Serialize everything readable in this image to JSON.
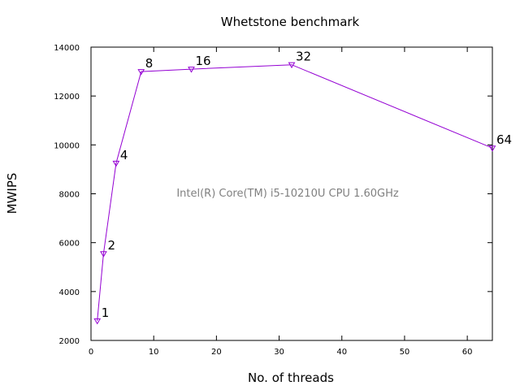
{
  "chart_data": {
    "type": "line",
    "title": "Whetstone benchmark",
    "xlabel": "No. of threads",
    "ylabel": "MWIPS",
    "xlim": [
      0,
      64
    ],
    "ylim": [
      2000,
      14000
    ],
    "xticks": [
      0,
      10,
      20,
      30,
      40,
      50,
      60
    ],
    "yticks": [
      2000,
      4000,
      6000,
      8000,
      10000,
      12000,
      14000
    ],
    "grid": false,
    "annotation": "Intel(R) Core(TM) i5-10210U CPU  1.60GHz",
    "series": [
      {
        "color": "#9400d3",
        "marker": "triangle-down",
        "x": [
          1,
          2,
          4,
          8,
          16,
          32,
          64
        ],
        "y": [
          2800,
          5550,
          9250,
          13000,
          13100,
          13280,
          9870
        ],
        "point_labels": [
          "1",
          "2",
          "4",
          "8",
          "16",
          "32",
          "64"
        ]
      }
    ]
  }
}
